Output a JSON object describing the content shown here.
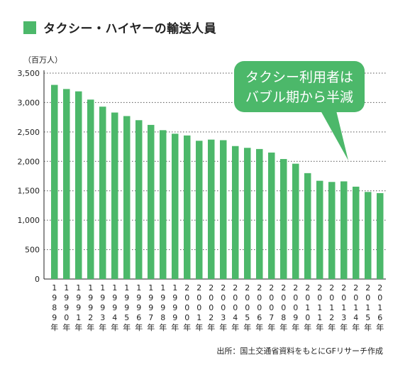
{
  "legend": {
    "label": "タクシー・ハイヤーの輸送人員",
    "color": "#4cb86a"
  },
  "unit_label": "（百万人）",
  "callout": {
    "line1": "タクシー利用者は",
    "line2": "バブル期から半減",
    "color": "#4cb86a"
  },
  "source": "出所：国土交通省資料をもとにGFリサーチ作成",
  "chart_data": {
    "type": "bar",
    "categories": [
      "1989年",
      "1990年",
      "1991年",
      "1992年",
      "1993年",
      "1994年",
      "1995年",
      "1996年",
      "1997年",
      "1998年",
      "1999年",
      "2000年",
      "2001年",
      "2002年",
      "2003年",
      "2004年",
      "2005年",
      "2006年",
      "2007年",
      "2008年",
      "2009年",
      "2010年",
      "2011年",
      "2012年",
      "2013年",
      "2014年",
      "2015年",
      "2016年"
    ],
    "values": [
      3300,
      3230,
      3190,
      3050,
      2930,
      2830,
      2770,
      2700,
      2620,
      2530,
      2470,
      2440,
      2350,
      2370,
      2360,
      2260,
      2230,
      2210,
      2150,
      2040,
      1960,
      1800,
      1670,
      1650,
      1660,
      1570,
      1480,
      1460
    ],
    "ylim": [
      0,
      3500
    ],
    "yticks": [
      0,
      500,
      1000,
      1500,
      2000,
      2500,
      3000,
      3500
    ],
    "ytick_labels": [
      "0",
      "500",
      "1,000",
      "1,500",
      "2,000",
      "2,500",
      "3,000",
      "3,500"
    ],
    "grid": true,
    "bar_color": "#4cb86a"
  }
}
